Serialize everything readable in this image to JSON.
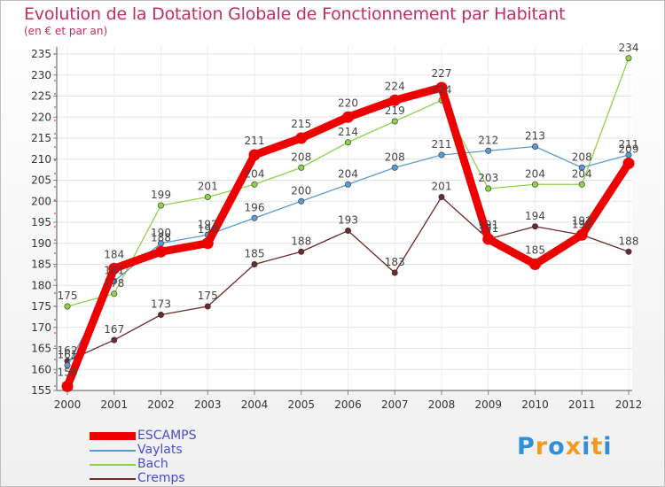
{
  "chart_data": {
    "type": "line",
    "title": "Evolution de la Dotation Globale de Fonctionnement par Habitant",
    "subtitle": "(en € et par an)",
    "categories": [
      "2000",
      "2001",
      "2002",
      "2003",
      "2004",
      "2005",
      "2006",
      "2007",
      "2008",
      "2009",
      "2010",
      "2011",
      "2012"
    ],
    "ylim": [
      155,
      235
    ],
    "yticks": [
      155,
      160,
      165,
      170,
      175,
      180,
      185,
      190,
      195,
      200,
      205,
      210,
      215,
      220,
      225,
      230,
      235
    ],
    "grid": true,
    "series": [
      {
        "name": "Cremps",
        "color": "#6b2b2b",
        "values": [
          162,
          167,
          173,
          175,
          185,
          188,
          193,
          183,
          201,
          191,
          194,
          192,
          188
        ],
        "labels": [
          "162",
          "167",
          "173",
          "175",
          "185",
          "188",
          "193",
          "183",
          "201",
          "191",
          "194",
          "192",
          "188"
        ]
      },
      {
        "name": "Bach",
        "color": "#8ed24a",
        "values": [
          175,
          178,
          199,
          201,
          204,
          208,
          214,
          219,
          224,
          203,
          204,
          204,
          234
        ],
        "labels": [
          "175",
          "178",
          "199",
          "201",
          "204",
          "208",
          "214",
          "219",
          "224",
          "203",
          "204",
          "204",
          "234"
        ]
      },
      {
        "name": "Vaylats",
        "color": "#5b9bd5",
        "values": [
          161,
          181,
          190,
          192,
          196,
          200,
          204,
          208,
          211,
          212,
          213,
          208,
          211
        ],
        "labels": [
          "161",
          "181",
          "190",
          "192",
          "196",
          "200",
          "204",
          "208",
          "211",
          "212",
          "213",
          "208",
          "211"
        ]
      },
      {
        "name": "ESCAMPS",
        "color": "#ee0000",
        "values": [
          156,
          184,
          188,
          190,
          211,
          215,
          220,
          224,
          227,
          191,
          185,
          192,
          209
        ],
        "labels": [
          "156",
          "184",
          "188",
          "190",
          "211",
          "215",
          "220",
          "224",
          "227",
          "191",
          "185",
          "192",
          "209"
        ]
      }
    ]
  },
  "legend": {
    "items": [
      {
        "name": "ESCAMPS",
        "color": "#ee0000"
      },
      {
        "name": "Vaylats",
        "color": "#5b9bd5"
      },
      {
        "name": "Bach",
        "color": "#8ed24a"
      },
      {
        "name": "Cremps",
        "color": "#6b2b2b"
      }
    ]
  },
  "logo": {
    "text": "Proxiti",
    "letter_colors": [
      "#2f8fd8",
      "#f39a22",
      "#2f8fd8",
      "#f39a22",
      "#2f8fd8",
      "#f39a22",
      "#2f8fd8"
    ]
  }
}
